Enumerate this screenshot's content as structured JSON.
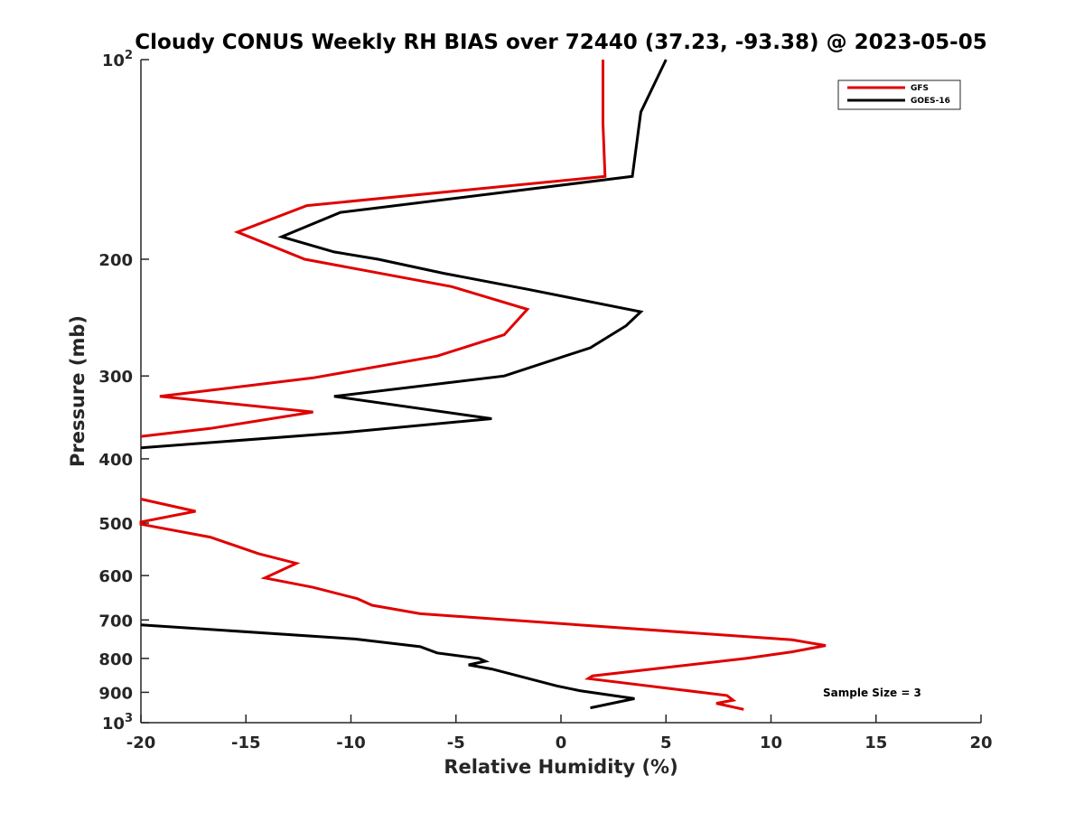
{
  "chart_data": {
    "type": "line",
    "title": "Cloudy CONUS Weekly RH BIAS over 72440 (37.23, -93.38) @ 2023-05-05",
    "xlabel": "Relative Humidity (%)",
    "ylabel": "Pressure (mb)",
    "xlim": [
      -20,
      20
    ],
    "ylim": [
      1000,
      100
    ],
    "y_scale": "log",
    "y_reversed": true,
    "x_ticks": [
      "-20",
      "-15",
      "-10",
      "-5",
      "0",
      "5",
      "10",
      "15",
      "20"
    ],
    "y_ticks": [
      {
        "value": 100,
        "base": "10",
        "exp": "2"
      },
      {
        "value": 200,
        "label": "200"
      },
      {
        "value": 300,
        "label": "300"
      },
      {
        "value": 400,
        "label": "400"
      },
      {
        "value": 500,
        "label": "500"
      },
      {
        "value": 600,
        "label": "600"
      },
      {
        "value": 700,
        "label": "700"
      },
      {
        "value": 800,
        "label": "800"
      },
      {
        "value": 900,
        "label": "900"
      },
      {
        "value": 1000,
        "base": "10",
        "exp": "3"
      }
    ],
    "grid": false,
    "legend_position": "top-right",
    "annotation": "Sample Size = 3",
    "series": [
      {
        "name": "GFS",
        "color": "#e00000",
        "segments": [
          [
            [
              2.0,
              100
            ],
            [
              2.0,
              125
            ],
            [
              2.1,
              150
            ],
            [
              -12.1,
              166
            ],
            [
              -15.4,
              182
            ],
            [
              -12.2,
              200
            ],
            [
              -5.2,
              220
            ],
            [
              -1.6,
              238
            ],
            [
              -2.7,
              260
            ],
            [
              -5.9,
              280
            ],
            [
              -11.8,
              302
            ],
            [
              -19.1,
              322
            ],
            [
              -11.8,
              340
            ],
            [
              -16.7,
              360
            ],
            [
              -20.0,
              370
            ]
          ],
          [
            [
              -20.0,
              460
            ],
            [
              -17.4,
              480
            ],
            [
              -20.0,
              498
            ],
            [
              -20.0,
              502
            ],
            [
              -16.7,
              525
            ],
            [
              -14.4,
              556
            ],
            [
              -12.6,
              575
            ],
            [
              -14.1,
              605
            ],
            [
              -11.8,
              625
            ],
            [
              -9.7,
              650
            ],
            [
              -9.0,
              665
            ],
            [
              -6.7,
              685
            ],
            [
              11.0,
              750
            ],
            [
              12.6,
              765
            ],
            [
              11.0,
              782
            ],
            [
              8.8,
              800
            ],
            [
              1.5,
              850
            ],
            [
              1.3,
              858
            ],
            [
              7.9,
              910
            ],
            [
              8.2,
              925
            ],
            [
              7.4,
              935
            ],
            [
              8.7,
              955
            ]
          ]
        ]
      },
      {
        "name": "GOES-16",
        "color": "#000000",
        "segments": [
          [
            [
              5.0,
              100
            ],
            [
              3.8,
              120
            ],
            [
              3.4,
              150
            ],
            [
              -10.5,
              170
            ],
            [
              -13.3,
              185
            ],
            [
              -10.8,
              195
            ],
            [
              -8.7,
              200
            ],
            [
              -5.6,
              210
            ],
            [
              -1.6,
              222
            ],
            [
              3.8,
              240
            ],
            [
              3.1,
              252
            ],
            [
              1.4,
              272
            ],
            [
              -2.7,
              300
            ],
            [
              -10.8,
              322
            ],
            [
              -3.3,
              348
            ],
            [
              -10.3,
              365
            ],
            [
              -20.0,
              385
            ]
          ],
          [
            [
              -20.0,
              712
            ],
            [
              -9.8,
              748
            ],
            [
              -6.7,
              768
            ],
            [
              -5.9,
              785
            ],
            [
              -3.9,
              800
            ],
            [
              -3.6,
              808
            ],
            [
              -4.4,
              818
            ],
            [
              -3.3,
              830
            ],
            [
              -0.2,
              880
            ],
            [
              0.9,
              895
            ],
            [
              3.5,
              920
            ],
            [
              1.4,
              950
            ]
          ]
        ]
      }
    ]
  }
}
